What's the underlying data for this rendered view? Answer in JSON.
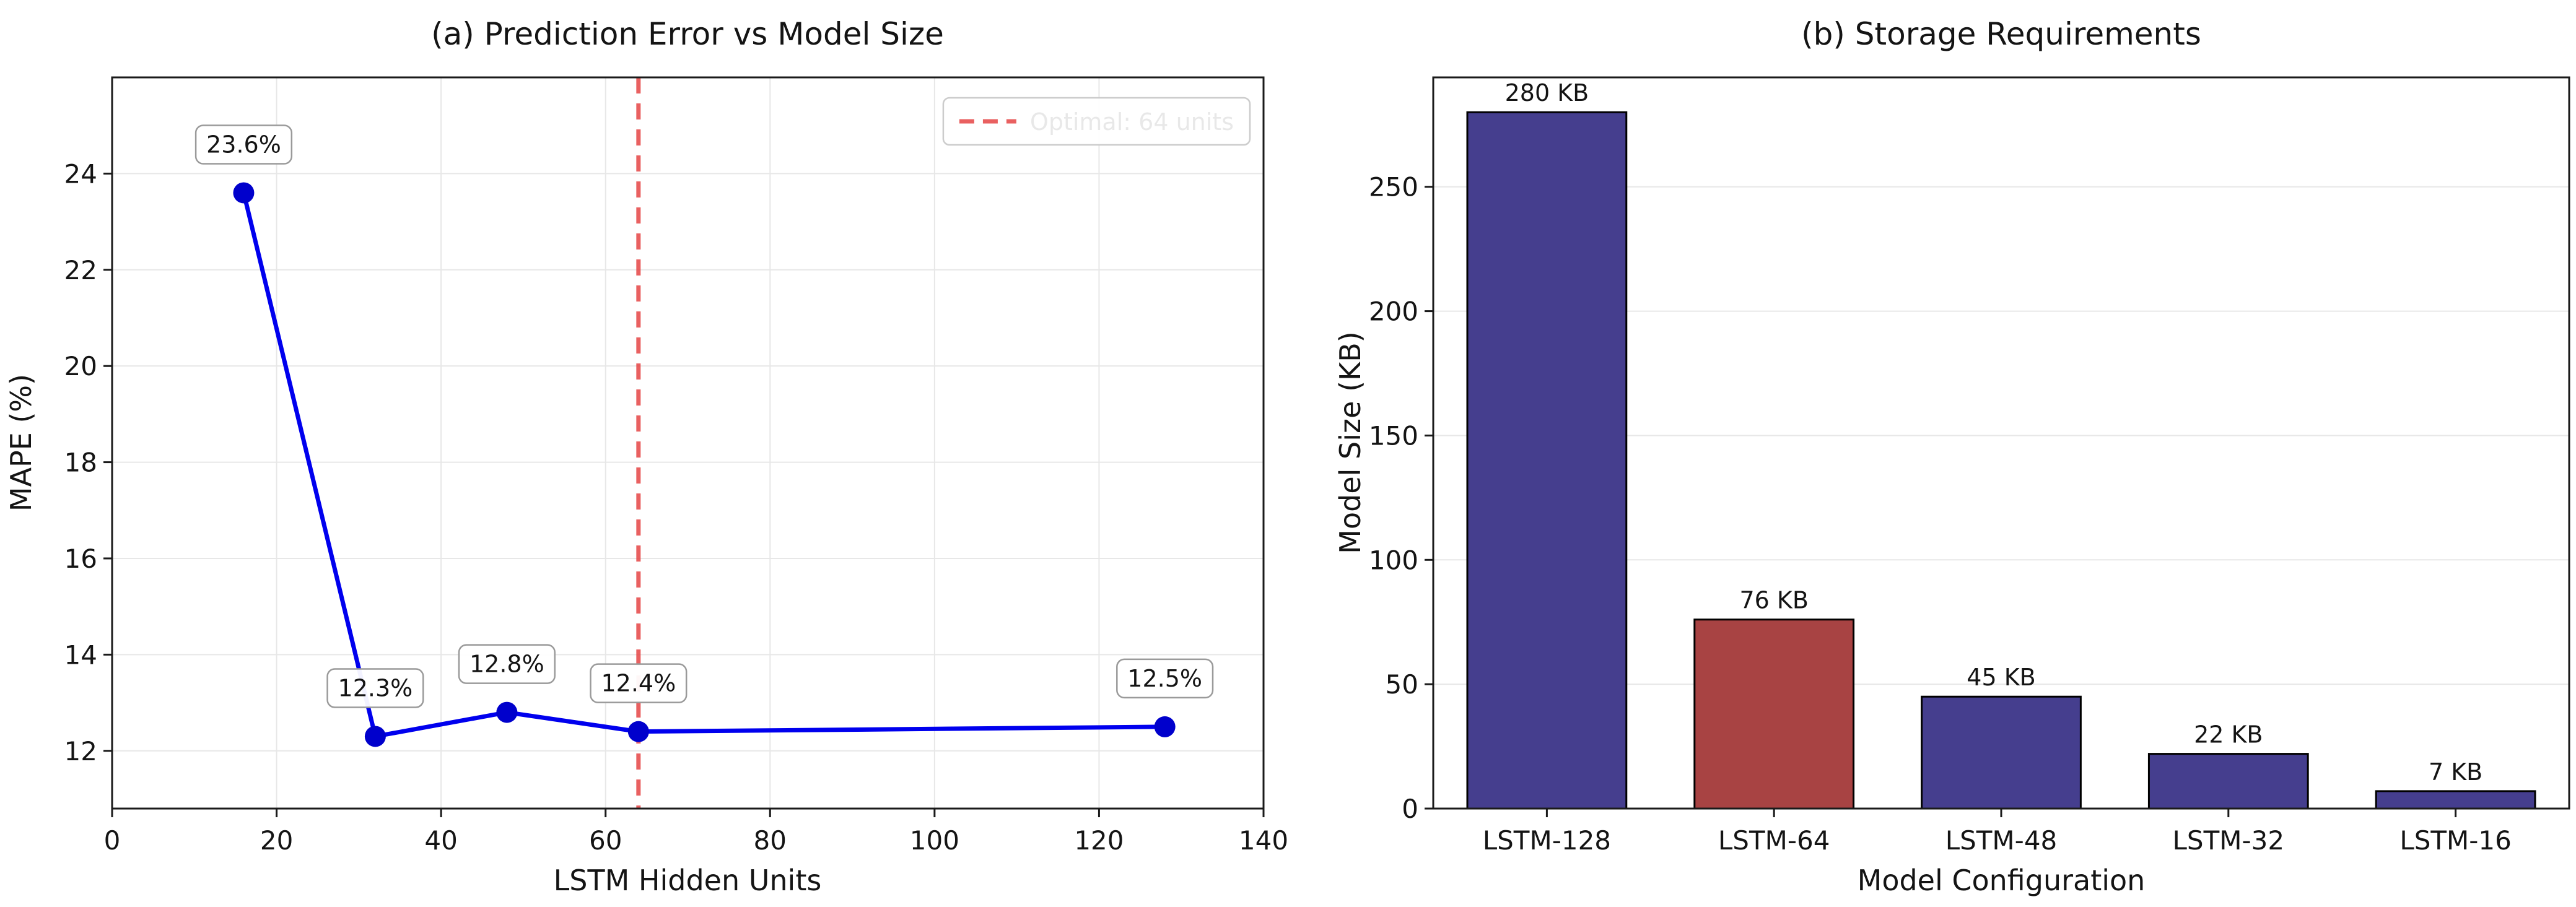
{
  "figure": {
    "background": "#ffffff"
  },
  "chart_data": [
    {
      "type": "line",
      "title": "(a) Prediction Error vs Model Size",
      "xlabel": "LSTM Hidden Units",
      "ylabel": "MAPE (%)",
      "x": [
        16,
        32,
        48,
        64,
        128
      ],
      "y": [
        23.6,
        12.3,
        12.8,
        12.4,
        12.5
      ],
      "point_labels": [
        "23.6%",
        "12.3%",
        "12.8%",
        "12.4%",
        "12.5%"
      ],
      "xlim": [
        0,
        140
      ],
      "ylim": [
        10.8,
        26
      ],
      "xticks": [
        0,
        20,
        40,
        60,
        80,
        100,
        120,
        140
      ],
      "yticks": [
        12,
        14,
        16,
        18,
        20,
        22,
        24
      ],
      "line_color": "#0000ee",
      "marker_color": "#0000cc",
      "grid": true,
      "legend_position": "upper right",
      "vline": {
        "x": 64,
        "label": "Optimal: 64 units",
        "color": "#e64545",
        "style": "dashed"
      }
    },
    {
      "type": "bar",
      "title": "(b) Storage Requirements",
      "xlabel": "Model Configuration",
      "ylabel": "Model Size (KB)",
      "categories": [
        "LSTM-128",
        "LSTM-64",
        "LSTM-48",
        "LSTM-32",
        "LSTM-16"
      ],
      "values": [
        280,
        76,
        45,
        22,
        7
      ],
      "bar_labels": [
        "280 KB",
        "76 KB",
        "45 KB",
        "22 KB",
        "7 KB"
      ],
      "bar_colors": [
        "#453e8e",
        "#a84343",
        "#453e8e",
        "#453e8e",
        "#453e8e"
      ],
      "edge_color": "#000000",
      "ylim": [
        0,
        294
      ],
      "yticks": [
        0,
        50,
        100,
        150,
        200,
        250
      ],
      "grid": true
    }
  ]
}
